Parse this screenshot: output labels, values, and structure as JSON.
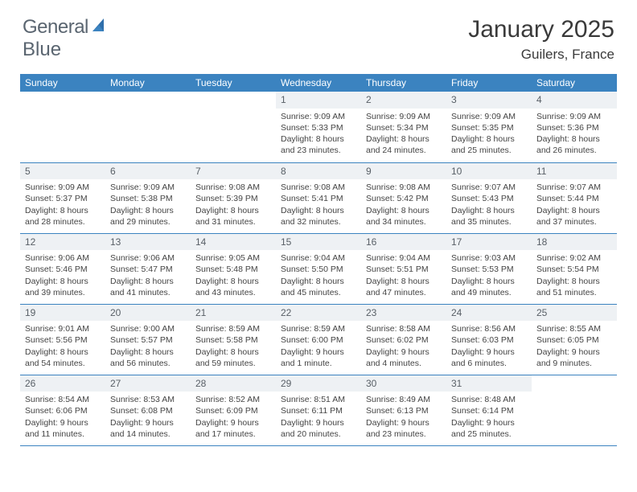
{
  "logo": {
    "word1": "General",
    "word2": "Blue"
  },
  "title": "January 2025",
  "location": "Guilers, France",
  "colors": {
    "header_bg": "#3b83c0",
    "header_text": "#ffffff",
    "daynum_bg": "#eef1f4",
    "daynum_text": "#585f66",
    "body_text": "#444444",
    "rule": "#3b83c0",
    "logo_gray": "#5a6570",
    "logo_blue": "#2f6fab"
  },
  "day_headers": [
    "Sunday",
    "Monday",
    "Tuesday",
    "Wednesday",
    "Thursday",
    "Friday",
    "Saturday"
  ],
  "weeks": [
    [
      {
        "n": "",
        "lines": []
      },
      {
        "n": "",
        "lines": []
      },
      {
        "n": "",
        "lines": []
      },
      {
        "n": "1",
        "lines": [
          "Sunrise: 9:09 AM",
          "Sunset: 5:33 PM",
          "Daylight: 8 hours",
          "and 23 minutes."
        ]
      },
      {
        "n": "2",
        "lines": [
          "Sunrise: 9:09 AM",
          "Sunset: 5:34 PM",
          "Daylight: 8 hours",
          "and 24 minutes."
        ]
      },
      {
        "n": "3",
        "lines": [
          "Sunrise: 9:09 AM",
          "Sunset: 5:35 PM",
          "Daylight: 8 hours",
          "and 25 minutes."
        ]
      },
      {
        "n": "4",
        "lines": [
          "Sunrise: 9:09 AM",
          "Sunset: 5:36 PM",
          "Daylight: 8 hours",
          "and 26 minutes."
        ]
      }
    ],
    [
      {
        "n": "5",
        "lines": [
          "Sunrise: 9:09 AM",
          "Sunset: 5:37 PM",
          "Daylight: 8 hours",
          "and 28 minutes."
        ]
      },
      {
        "n": "6",
        "lines": [
          "Sunrise: 9:09 AM",
          "Sunset: 5:38 PM",
          "Daylight: 8 hours",
          "and 29 minutes."
        ]
      },
      {
        "n": "7",
        "lines": [
          "Sunrise: 9:08 AM",
          "Sunset: 5:39 PM",
          "Daylight: 8 hours",
          "and 31 minutes."
        ]
      },
      {
        "n": "8",
        "lines": [
          "Sunrise: 9:08 AM",
          "Sunset: 5:41 PM",
          "Daylight: 8 hours",
          "and 32 minutes."
        ]
      },
      {
        "n": "9",
        "lines": [
          "Sunrise: 9:08 AM",
          "Sunset: 5:42 PM",
          "Daylight: 8 hours",
          "and 34 minutes."
        ]
      },
      {
        "n": "10",
        "lines": [
          "Sunrise: 9:07 AM",
          "Sunset: 5:43 PM",
          "Daylight: 8 hours",
          "and 35 minutes."
        ]
      },
      {
        "n": "11",
        "lines": [
          "Sunrise: 9:07 AM",
          "Sunset: 5:44 PM",
          "Daylight: 8 hours",
          "and 37 minutes."
        ]
      }
    ],
    [
      {
        "n": "12",
        "lines": [
          "Sunrise: 9:06 AM",
          "Sunset: 5:46 PM",
          "Daylight: 8 hours",
          "and 39 minutes."
        ]
      },
      {
        "n": "13",
        "lines": [
          "Sunrise: 9:06 AM",
          "Sunset: 5:47 PM",
          "Daylight: 8 hours",
          "and 41 minutes."
        ]
      },
      {
        "n": "14",
        "lines": [
          "Sunrise: 9:05 AM",
          "Sunset: 5:48 PM",
          "Daylight: 8 hours",
          "and 43 minutes."
        ]
      },
      {
        "n": "15",
        "lines": [
          "Sunrise: 9:04 AM",
          "Sunset: 5:50 PM",
          "Daylight: 8 hours",
          "and 45 minutes."
        ]
      },
      {
        "n": "16",
        "lines": [
          "Sunrise: 9:04 AM",
          "Sunset: 5:51 PM",
          "Daylight: 8 hours",
          "and 47 minutes."
        ]
      },
      {
        "n": "17",
        "lines": [
          "Sunrise: 9:03 AM",
          "Sunset: 5:53 PM",
          "Daylight: 8 hours",
          "and 49 minutes."
        ]
      },
      {
        "n": "18",
        "lines": [
          "Sunrise: 9:02 AM",
          "Sunset: 5:54 PM",
          "Daylight: 8 hours",
          "and 51 minutes."
        ]
      }
    ],
    [
      {
        "n": "19",
        "lines": [
          "Sunrise: 9:01 AM",
          "Sunset: 5:56 PM",
          "Daylight: 8 hours",
          "and 54 minutes."
        ]
      },
      {
        "n": "20",
        "lines": [
          "Sunrise: 9:00 AM",
          "Sunset: 5:57 PM",
          "Daylight: 8 hours",
          "and 56 minutes."
        ]
      },
      {
        "n": "21",
        "lines": [
          "Sunrise: 8:59 AM",
          "Sunset: 5:58 PM",
          "Daylight: 8 hours",
          "and 59 minutes."
        ]
      },
      {
        "n": "22",
        "lines": [
          "Sunrise: 8:59 AM",
          "Sunset: 6:00 PM",
          "Daylight: 9 hours",
          "and 1 minute."
        ]
      },
      {
        "n": "23",
        "lines": [
          "Sunrise: 8:58 AM",
          "Sunset: 6:02 PM",
          "Daylight: 9 hours",
          "and 4 minutes."
        ]
      },
      {
        "n": "24",
        "lines": [
          "Sunrise: 8:56 AM",
          "Sunset: 6:03 PM",
          "Daylight: 9 hours",
          "and 6 minutes."
        ]
      },
      {
        "n": "25",
        "lines": [
          "Sunrise: 8:55 AM",
          "Sunset: 6:05 PM",
          "Daylight: 9 hours",
          "and 9 minutes."
        ]
      }
    ],
    [
      {
        "n": "26",
        "lines": [
          "Sunrise: 8:54 AM",
          "Sunset: 6:06 PM",
          "Daylight: 9 hours",
          "and 11 minutes."
        ]
      },
      {
        "n": "27",
        "lines": [
          "Sunrise: 8:53 AM",
          "Sunset: 6:08 PM",
          "Daylight: 9 hours",
          "and 14 minutes."
        ]
      },
      {
        "n": "28",
        "lines": [
          "Sunrise: 8:52 AM",
          "Sunset: 6:09 PM",
          "Daylight: 9 hours",
          "and 17 minutes."
        ]
      },
      {
        "n": "29",
        "lines": [
          "Sunrise: 8:51 AM",
          "Sunset: 6:11 PM",
          "Daylight: 9 hours",
          "and 20 minutes."
        ]
      },
      {
        "n": "30",
        "lines": [
          "Sunrise: 8:49 AM",
          "Sunset: 6:13 PM",
          "Daylight: 9 hours",
          "and 23 minutes."
        ]
      },
      {
        "n": "31",
        "lines": [
          "Sunrise: 8:48 AM",
          "Sunset: 6:14 PM",
          "Daylight: 9 hours",
          "and 25 minutes."
        ]
      },
      {
        "n": "",
        "lines": []
      }
    ]
  ]
}
